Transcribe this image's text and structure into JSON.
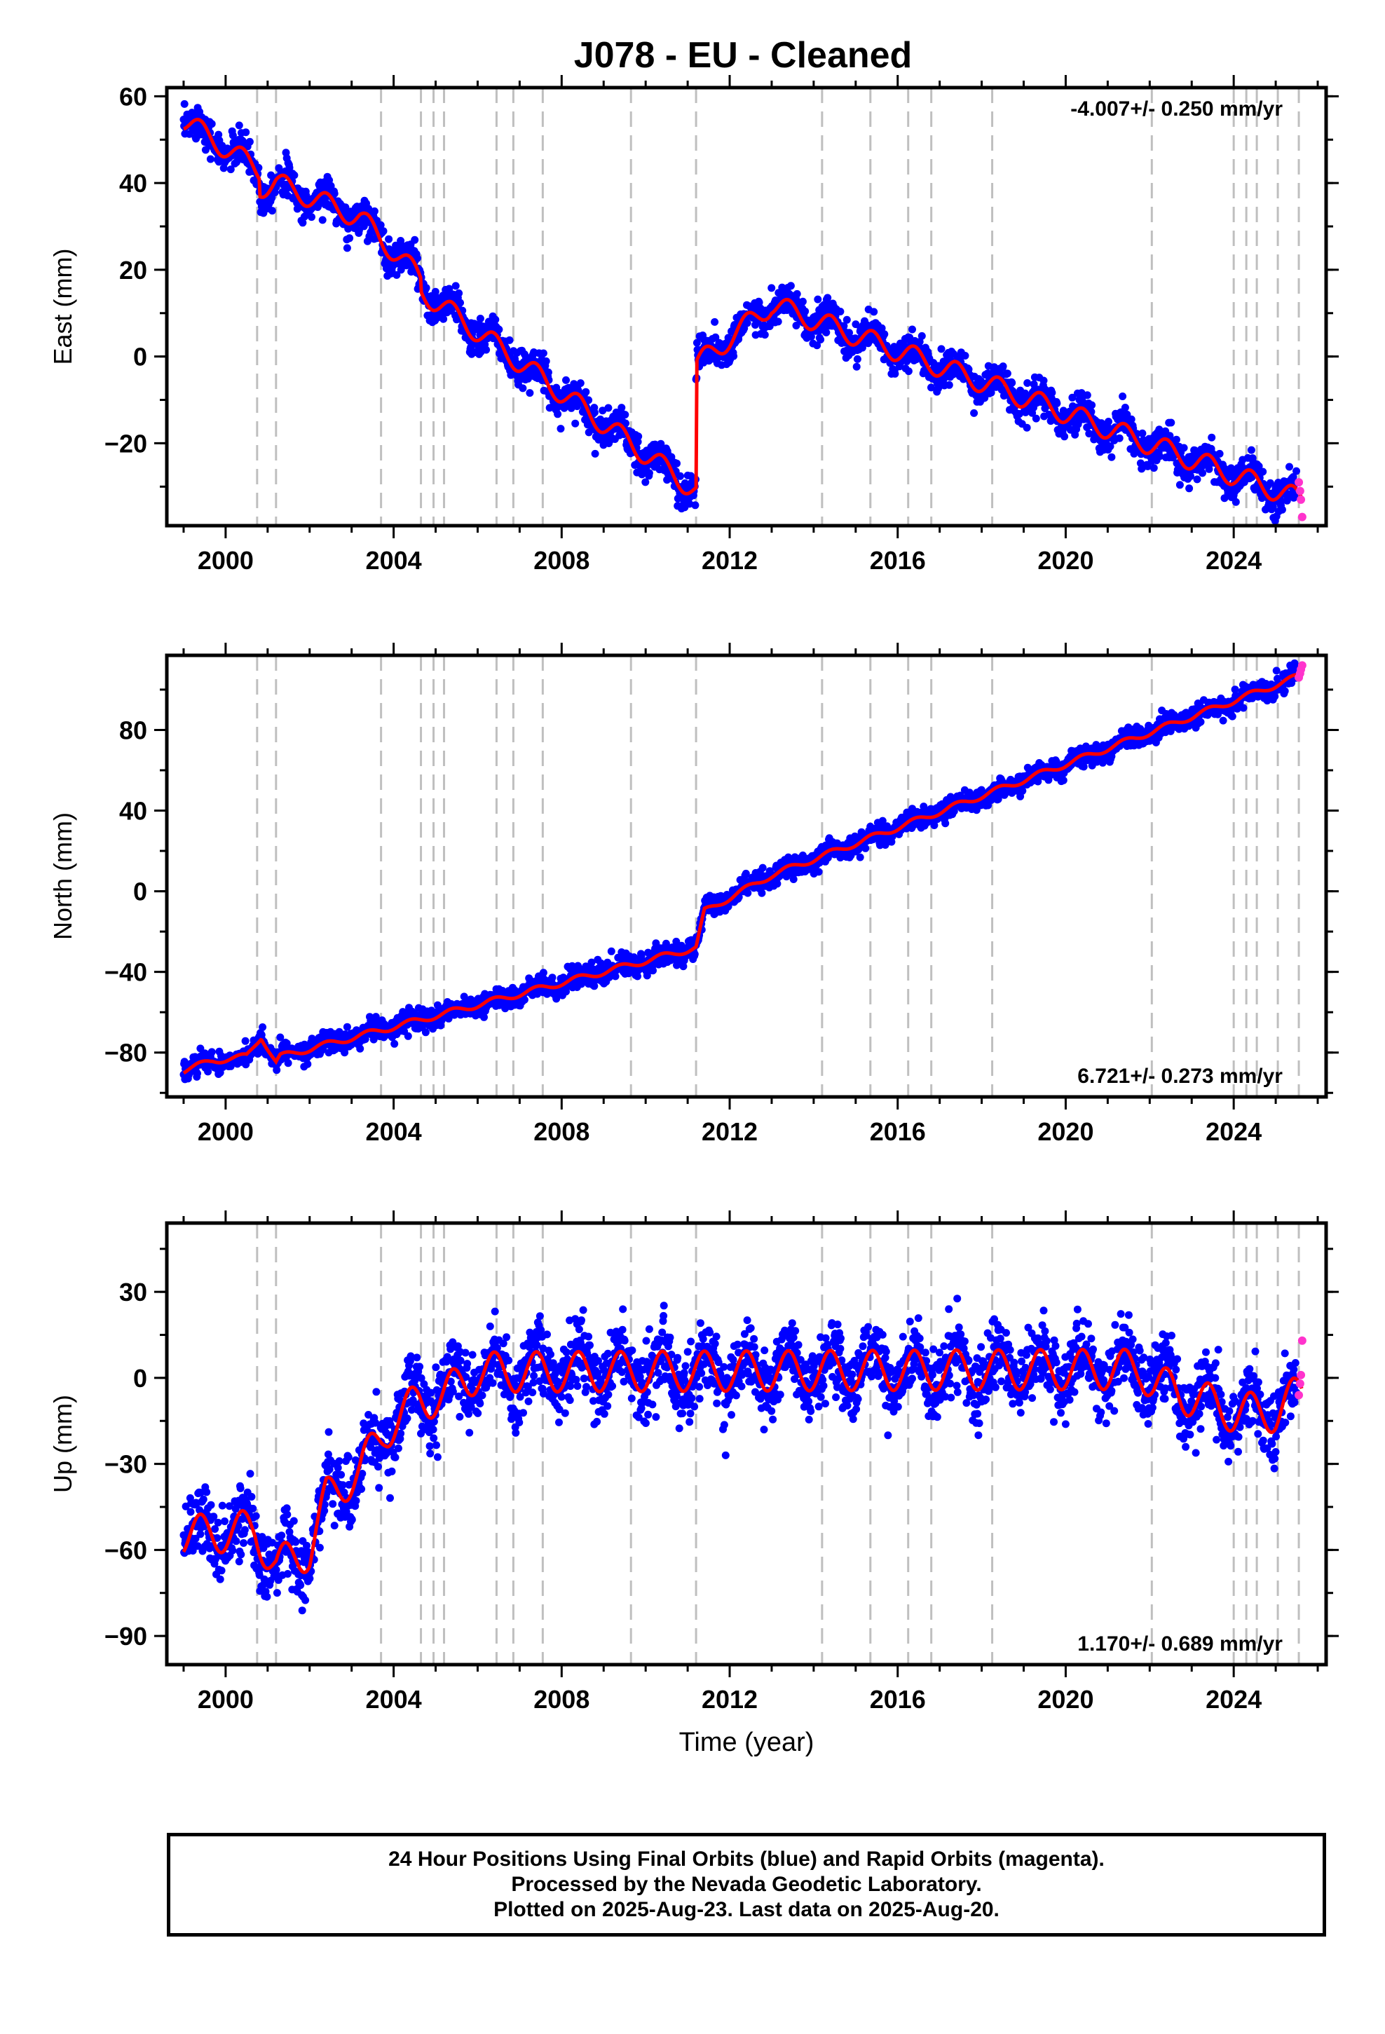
{
  "title": "J078  - EU - Cleaned",
  "colors": {
    "final_orbits": "#0000ff",
    "rapid_orbits": "#ff33cc",
    "model": "#ff0000",
    "event_lines": "#bfbfbf",
    "frame": "#000000"
  },
  "chart_data": [
    {
      "type": "scatter",
      "name": "east",
      "ylabel": "East (mm)",
      "xlim": [
        1998.6,
        2026.2
      ],
      "ylim": [
        -39,
        62
      ],
      "xticks": [
        2000,
        2004,
        2008,
        2012,
        2016,
        2020,
        2024
      ],
      "yticks": [
        -20,
        0,
        20,
        40,
        60
      ],
      "rate_label": "-4.007+/- 0.250 mm/yr",
      "rate_position": "top-right",
      "grid": false,
      "trend": [
        {
          "x": 1999.0,
          "y": 54.5
        },
        {
          "x": 2000.8,
          "y": 43
        },
        {
          "x": 2000.8,
          "y": 39
        },
        {
          "x": 2001.2,
          "y": 40
        },
        {
          "x": 2003.2,
          "y": 32
        },
        {
          "x": 2004.65,
          "y": 18
        },
        {
          "x": 2004.65,
          "y": 15
        },
        {
          "x": 2005.25,
          "y": 11
        },
        {
          "x": 2011.2,
          "y": -31
        },
        {
          "x": 2011.2,
          "y": -2
        },
        {
          "x": 2013.0,
          "y": 12
        },
        {
          "x": 2025.6,
          "y": -33
        }
      ],
      "seasonal_amplitude": 2.5,
      "noise": 2.0,
      "rapid_points": [
        {
          "x": 2025.55,
          "y": -29
        },
        {
          "x": 2025.58,
          "y": -31
        },
        {
          "x": 2025.6,
          "y": -33
        },
        {
          "x": 2025.63,
          "y": -37
        }
      ]
    },
    {
      "type": "scatter",
      "name": "north",
      "ylabel": "North (mm)",
      "xlim": [
        1998.6,
        2026.2
      ],
      "ylim": [
        -102,
        117
      ],
      "xticks": [
        2000,
        2004,
        2008,
        2012,
        2016,
        2020,
        2024
      ],
      "yticks": [
        -80,
        -40,
        0,
        40,
        80
      ],
      "rate_label": "6.721+/- 0.273 mm/yr",
      "rate_position": "bottom-right",
      "grid": false,
      "trend": [
        {
          "x": 1999.0,
          "y": -89
        },
        {
          "x": 1999.7,
          "y": -84
        },
        {
          "x": 2000.5,
          "y": -82
        },
        {
          "x": 2000.85,
          "y": -72
        },
        {
          "x": 2001.2,
          "y": -85
        },
        {
          "x": 2001.3,
          "y": -82
        },
        {
          "x": 2011.2,
          "y": -28
        },
        {
          "x": 2011.4,
          "y": -10
        },
        {
          "x": 2013.0,
          "y": 8
        },
        {
          "x": 2025.6,
          "y": 107
        }
      ],
      "seasonal_amplitude": 1.5,
      "noise": 2.5,
      "rapid_points": [
        {
          "x": 2025.55,
          "y": 106
        },
        {
          "x": 2025.58,
          "y": 108
        },
        {
          "x": 2025.6,
          "y": 110
        },
        {
          "x": 2025.63,
          "y": 112
        }
      ]
    },
    {
      "type": "scatter",
      "name": "up",
      "ylabel": "Up (mm)",
      "xlabel": "Time (year)",
      "xlim": [
        1998.6,
        2026.2
      ],
      "ylim": [
        -100,
        54
      ],
      "xticks": [
        2000,
        2004,
        2008,
        2012,
        2016,
        2020,
        2024
      ],
      "yticks": [
        -90,
        -60,
        -30,
        0,
        30
      ],
      "rate_label": "1.170+/- 0.689 mm/yr",
      "rate_position": "bottom-right",
      "grid": false,
      "trend": [
        {
          "x": 1999.0,
          "y": -55
        },
        {
          "x": 2000.7,
          "y": -53
        },
        {
          "x": 2001.2,
          "y": -66
        },
        {
          "x": 2002.0,
          "y": -60
        },
        {
          "x": 2002.4,
          "y": -42
        },
        {
          "x": 2003.2,
          "y": -32
        },
        {
          "x": 2003.8,
          "y": -18
        },
        {
          "x": 2004.6,
          "y": -8
        },
        {
          "x": 2005.2,
          "y": -6
        },
        {
          "x": 2006.0,
          "y": 2
        },
        {
          "x": 2021.8,
          "y": 3
        },
        {
          "x": 2022.1,
          "y": -2
        },
        {
          "x": 2024.0,
          "y": -12
        },
        {
          "x": 2025.0,
          "y": -12
        },
        {
          "x": 2025.6,
          "y": -5
        }
      ],
      "seasonal_amplitude": 7.0,
      "noise": 6.0,
      "rapid_points": [
        {
          "x": 2025.55,
          "y": -6
        },
        {
          "x": 2025.58,
          "y": -2
        },
        {
          "x": 2025.6,
          "y": 1
        },
        {
          "x": 2025.63,
          "y": 13
        }
      ]
    }
  ],
  "event_lines": [
    2000.75,
    2001.2,
    2003.7,
    2004.65,
    2004.95,
    2005.2,
    2006.45,
    2006.85,
    2007.55,
    2009.65,
    2011.2,
    2014.2,
    2015.35,
    2016.25,
    2016.8,
    2018.25,
    2022.05,
    2024.0,
    2024.3,
    2024.55,
    2025.05,
    2025.55
  ],
  "footer": {
    "line1": "24 Hour Positions Using Final Orbits (blue) and Rapid Orbits (magenta).",
    "line2": "Processed by the Nevada Geodetic Laboratory.",
    "line3": "Plotted on 2025-Aug-23. Last data on 2025-Aug-20."
  }
}
